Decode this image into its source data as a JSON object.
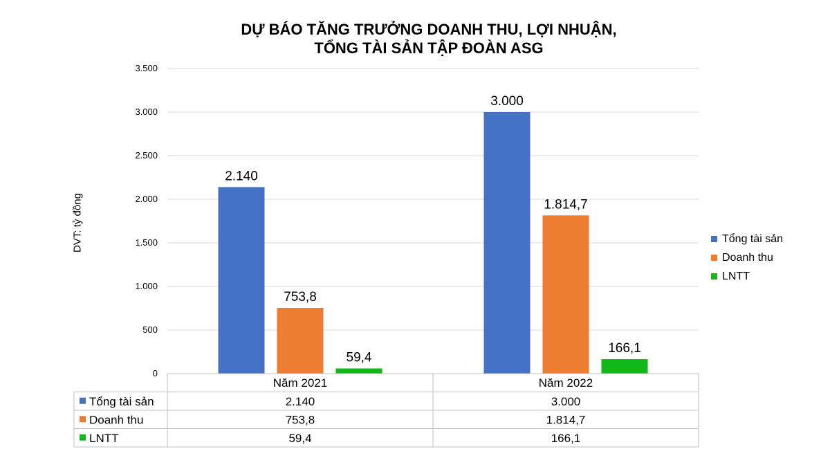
{
  "chart_data": {
    "type": "bar",
    "title": [
      "DỰ BÁO TĂNG TRƯỞNG DOANH THU, LỢI NHUẬN,",
      "TỔNG TÀI SẢN TẬP ĐOÀN ASG"
    ],
    "ylabel": "DVT: tỷ đồng",
    "xlabel": "",
    "categories": [
      "Năm 2021",
      "Năm 2022"
    ],
    "series": [
      {
        "name": "Tổng tài sản",
        "values": [
          2140,
          3000
        ],
        "labels": [
          "2.140",
          "3.000"
        ],
        "color": "#4472C4"
      },
      {
        "name": "Doanh thu",
        "values": [
          753.8,
          1814.7
        ],
        "labels": [
          "753,8",
          "1.814,7"
        ],
        "color": "#ED7D31"
      },
      {
        "name": "LNTT",
        "values": [
          59.4,
          166.1
        ],
        "labels": [
          "59,4",
          "166,1"
        ],
        "color": "#12B81A"
      }
    ],
    "ylim": [
      0,
      3500
    ],
    "yticks": [
      0,
      500,
      1000,
      1500,
      2000,
      2500,
      3000,
      3500
    ],
    "ytick_labels": [
      "0",
      "500",
      "1.000",
      "1.500",
      "2.000",
      "2.500",
      "3.000",
      "3.500"
    ],
    "grid": true,
    "legend": "right",
    "data_table": true
  }
}
